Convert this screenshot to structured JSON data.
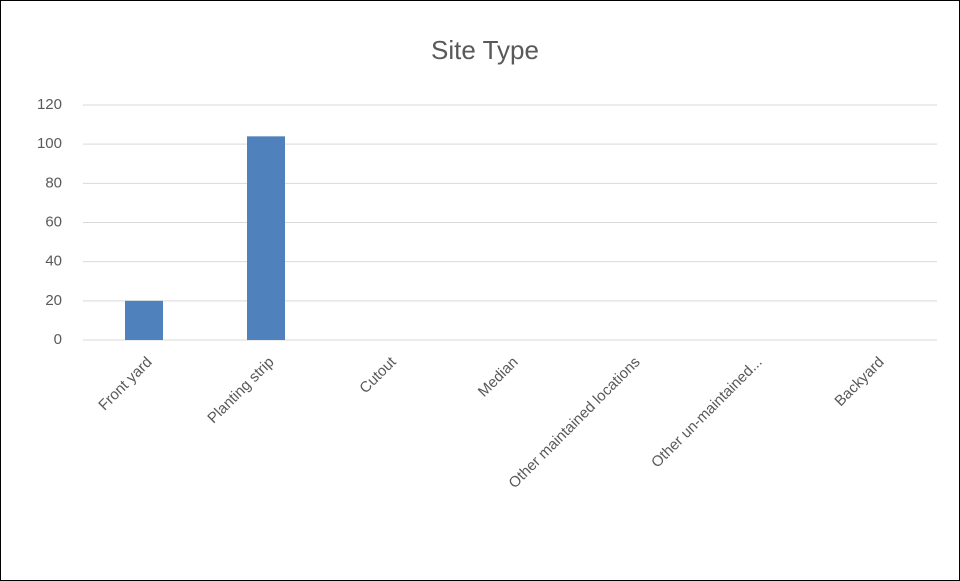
{
  "chart_data": {
    "type": "bar",
    "title": "Site Type",
    "categories": [
      "Front yard",
      "Planting strip",
      "Cutout",
      "Median",
      "Other maintained locations",
      "Other un-maintained...",
      "Backyard"
    ],
    "values": [
      20,
      104,
      0,
      0,
      0,
      0,
      0
    ],
    "color": "#4f81bd",
    "ylim": [
      0,
      120
    ],
    "yticks": [
      0,
      20,
      40,
      60,
      80,
      100,
      120
    ],
    "grid": true
  }
}
